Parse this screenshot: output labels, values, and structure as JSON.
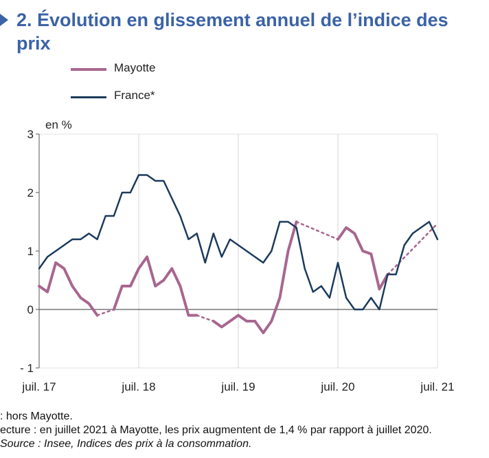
{
  "title": "2. Évolution en glissement annuel de l’indice des prix",
  "unit_label": "en %",
  "notes": {
    "footnote": ": hors Mayotte.",
    "reading": "ecture : en juillet 2021 à Mayotte, les prix augmentent de 1,4 % par rapport à juillet 2020.",
    "source": "Source : Insee, Indices des prix à la consommation."
  },
  "colors": {
    "mayotte": "#a8668f",
    "france": "#1b3a5c",
    "title": "#3b63a6",
    "zero_line": "#333333",
    "grid": "#d4d4d4"
  },
  "chart_data": {
    "type": "line",
    "title": "2. Évolution en glissement annuel de l’indice des prix",
    "ylabel": "en %",
    "ylim": [
      -1,
      3
    ],
    "yticks": [
      3,
      2,
      1,
      0,
      -1
    ],
    "ytick_labels": [
      "3",
      "2",
      "1",
      "0",
      "- 1"
    ],
    "xlim": [
      0,
      48
    ],
    "xticks": [
      {
        "x": 0,
        "label": "juil. 17"
      },
      {
        "x": 12,
        "label": "juil. 18"
      },
      {
        "x": 24,
        "label": "juil. 19"
      },
      {
        "x": 36,
        "label": "juil. 20"
      },
      {
        "x": 48,
        "label": "juil. 21"
      }
    ],
    "grid": "vertical",
    "legend_position": "top-left",
    "series": [
      {
        "name": "Mayotte",
        "style": "thick",
        "segments": [
          {
            "dashed": false,
            "points": [
              [
                0,
                0.4
              ],
              [
                1,
                0.3
              ],
              [
                2,
                0.8
              ],
              [
                3,
                0.7
              ],
              [
                4,
                0.4
              ],
              [
                5,
                0.2
              ],
              [
                6,
                0.1
              ],
              [
                7,
                -0.1
              ]
            ]
          },
          {
            "dashed": true,
            "points": [
              [
                7,
                -0.1
              ],
              [
                9,
                0
              ]
            ]
          },
          {
            "dashed": false,
            "points": [
              [
                9,
                0
              ],
              [
                10,
                0.4
              ],
              [
                11,
                0.4
              ],
              [
                12,
                0.7
              ],
              [
                13,
                0.9
              ],
              [
                14,
                0.4
              ],
              [
                15,
                0.5
              ],
              [
                16,
                0.7
              ],
              [
                17,
                0.4
              ],
              [
                18,
                -0.1
              ],
              [
                19,
                -0.1
              ]
            ]
          },
          {
            "dashed": true,
            "points": [
              [
                19,
                -0.1
              ],
              [
                21,
                -0.2
              ]
            ]
          },
          {
            "dashed": false,
            "points": [
              [
                21,
                -0.2
              ],
              [
                22,
                -0.3
              ],
              [
                23,
                -0.2
              ],
              [
                24,
                -0.1
              ],
              [
                25,
                -0.2
              ],
              [
                26,
                -0.2
              ],
              [
                27,
                -0.4
              ],
              [
                28,
                -0.2
              ],
              [
                29,
                0.2
              ],
              [
                30,
                1.0
              ],
              [
                31,
                1.5
              ]
            ]
          },
          {
            "dashed": true,
            "points": [
              [
                31,
                1.5
              ],
              [
                36,
                1.2
              ]
            ]
          },
          {
            "dashed": false,
            "points": [
              [
                36,
                1.2
              ],
              [
                37,
                1.4
              ],
              [
                38,
                1.3
              ],
              [
                39,
                1.0
              ],
              [
                40,
                0.95
              ],
              [
                41,
                0.35
              ],
              [
                42,
                0.6
              ]
            ]
          },
          {
            "dashed": true,
            "points": [
              [
                42,
                0.6
              ],
              [
                48,
                1.47
              ]
            ]
          }
        ]
      },
      {
        "name": "France*",
        "style": "thin",
        "segments": [
          {
            "dashed": false,
            "points": [
              [
                0,
                0.7
              ],
              [
                1,
                0.9
              ],
              [
                2,
                1.0
              ],
              [
                3,
                1.1
              ],
              [
                4,
                1.2
              ],
              [
                5,
                1.2
              ],
              [
                6,
                1.3
              ],
              [
                7,
                1.2
              ],
              [
                8,
                1.6
              ],
              [
                9,
                1.6
              ],
              [
                10,
                2.0
              ],
              [
                11,
                2.0
              ],
              [
                12,
                2.3
              ],
              [
                13,
                2.3
              ],
              [
                14,
                2.2
              ],
              [
                15,
                2.2
              ],
              [
                16,
                1.9
              ],
              [
                17,
                1.6
              ],
              [
                18,
                1.2
              ],
              [
                19,
                1.3
              ],
              [
                20,
                0.8
              ],
              [
                21,
                1.3
              ],
              [
                22,
                0.9
              ],
              [
                23,
                1.2
              ],
              [
                24,
                1.1
              ],
              [
                25,
                1.0
              ],
              [
                26,
                0.9
              ],
              [
                27,
                0.8
              ],
              [
                28,
                1.0
              ],
              [
                29,
                1.5
              ],
              [
                30,
                1.5
              ],
              [
                31,
                1.4
              ],
              [
                32,
                0.7
              ],
              [
                33,
                0.3
              ],
              [
                34,
                0.4
              ],
              [
                35,
                0.2
              ],
              [
                36,
                0.8
              ],
              [
                37,
                0.2
              ],
              [
                38,
                0.0
              ],
              [
                39,
                0.0
              ],
              [
                40,
                0.2
              ],
              [
                41,
                0.0
              ],
              [
                42,
                0.6
              ],
              [
                43,
                0.6
              ],
              [
                44,
                1.1
              ],
              [
                45,
                1.3
              ],
              [
                46,
                1.4
              ],
              [
                47,
                1.5
              ],
              [
                48,
                1.2
              ]
            ]
          }
        ]
      }
    ]
  }
}
